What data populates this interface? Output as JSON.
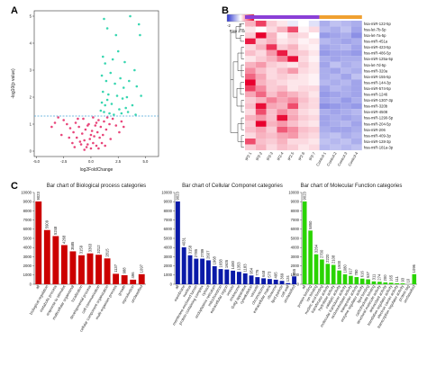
{
  "panels": {
    "a": "A",
    "b": "B",
    "c": "C"
  },
  "colors": {
    "volcano_significant": "#37d6b0",
    "volcano_nonsignificant": "#e8457a",
    "threshold_line": "#49a3d6",
    "heat_low": "#2d35d0",
    "heat_mid": "#ffffff",
    "heat_high": "#e8002e",
    "group_ip": "#8a3fd6",
    "group_control": "#f0a030",
    "bar_bio": "#cc0000",
    "bar_cell": "#0a1aa8",
    "bar_mol": "#2ad400"
  },
  "chart_data": [
    {
      "type": "scatter",
      "panel": "A",
      "xlabel": "log2FoldChange",
      "ylabel": "-log10(p value)",
      "xlim": [
        -5.2,
        6.2
      ],
      "ylim": [
        -0.2,
        5.2
      ],
      "xticks": [
        -5.0,
        -2.5,
        0.0,
        2.5,
        5.0
      ],
      "xtick_labels": [
        "-5.0",
        "-2.5",
        "0.0",
        "2.5",
        "5.0"
      ],
      "yticks": [
        0,
        1,
        2,
        3,
        4,
        5
      ],
      "threshold_y": 1.3,
      "significant_points": [
        [
          1.2,
          4.9
        ],
        [
          3.6,
          5.0
        ],
        [
          1.5,
          4.55
        ],
        [
          2.3,
          4.3
        ],
        [
          4.4,
          4.7
        ],
        [
          4.5,
          4.3
        ],
        [
          1.1,
          3.5
        ],
        [
          1.3,
          3.25
        ],
        [
          2.0,
          3.4
        ],
        [
          2.5,
          3.7
        ],
        [
          3.1,
          3.3
        ],
        [
          4.0,
          3.0
        ],
        [
          1.0,
          2.8
        ],
        [
          1.4,
          2.6
        ],
        [
          1.8,
          2.9
        ],
        [
          2.2,
          2.5
        ],
        [
          2.7,
          2.7
        ],
        [
          3.0,
          2.35
        ],
        [
          3.5,
          2.6
        ],
        [
          4.2,
          2.4
        ],
        [
          1.1,
          2.2
        ],
        [
          1.6,
          2.1
        ],
        [
          2.4,
          2.05
        ],
        [
          2.9,
          1.95
        ],
        [
          3.3,
          2.0
        ],
        [
          4.6,
          2.05
        ],
        [
          1.0,
          1.8
        ],
        [
          1.3,
          1.7
        ],
        [
          1.9,
          1.75
        ],
        [
          2.6,
          1.55
        ],
        [
          3.2,
          1.6
        ],
        [
          3.8,
          1.7
        ],
        [
          1.2,
          1.45
        ],
        [
          1.7,
          1.4
        ],
        [
          2.1,
          1.35
        ],
        [
          0.9,
          1.5
        ],
        [
          2.8,
          1.4
        ],
        [
          3.4,
          1.45
        ],
        [
          4.1,
          1.35
        ],
        [
          1.5,
          1.9
        ]
      ],
      "nonsignificant_points": [
        [
          -0.3,
          0.25
        ],
        [
          0.2,
          0.3
        ],
        [
          0.5,
          0.2
        ],
        [
          -0.6,
          0.4
        ],
        [
          0.8,
          0.5
        ],
        [
          -1.0,
          0.35
        ],
        [
          1.1,
          0.6
        ],
        [
          -1.3,
          0.5
        ],
        [
          0.0,
          0.1
        ],
        [
          -0.1,
          0.45
        ],
        [
          0.3,
          0.55
        ],
        [
          -0.4,
          0.15
        ],
        [
          0.6,
          0.7
        ],
        [
          -0.8,
          0.65
        ],
        [
          1.4,
          0.8
        ],
        [
          -1.6,
          0.7
        ],
        [
          0.9,
          0.9
        ],
        [
          -0.5,
          0.8
        ],
        [
          0.1,
          0.75
        ],
        [
          -1.1,
          0.9
        ],
        [
          1.7,
          1.0
        ],
        [
          -1.9,
          0.85
        ],
        [
          0.4,
          0.95
        ],
        [
          -0.2,
          1.0
        ],
        [
          1.2,
          1.1
        ],
        [
          -1.4,
          1.05
        ],
        [
          2.0,
          1.2
        ],
        [
          -2.2,
          1.0
        ],
        [
          0.7,
          1.15
        ],
        [
          -0.7,
          1.2
        ],
        [
          1.5,
          1.25
        ],
        [
          -2.5,
          1.15
        ],
        [
          2.3,
          0.95
        ],
        [
          -3.0,
          1.25
        ],
        [
          0.2,
          1.25
        ],
        [
          -0.9,
          0.25
        ],
        [
          1.0,
          0.3
        ],
        [
          -1.7,
          0.3
        ],
        [
          2.6,
          0.7
        ],
        [
          -2.7,
          0.6
        ],
        [
          0.0,
          0.6
        ],
        [
          -0.3,
          0.95
        ],
        [
          1.8,
          0.45
        ],
        [
          -2.0,
          0.5
        ],
        [
          0.5,
          1.05
        ],
        [
          -1.2,
          1.2
        ],
        [
          2.8,
          1.1
        ],
        [
          -3.3,
          1.05
        ],
        [
          -0.6,
          0.05
        ],
        [
          0.7,
          0.1
        ],
        [
          3.0,
          0.9
        ],
        [
          -3.6,
          0.9
        ],
        [
          1.3,
          0.2
        ],
        [
          -1.5,
          0.15
        ]
      ]
    },
    {
      "type": "heatmap",
      "panel": "B",
      "legend_title": "Row Z-Score",
      "legend_ticks": [
        "-2",
        "0",
        "2"
      ],
      "columns": [
        "IP2-1",
        "IP2-2",
        "IP2-3",
        "IP2-4",
        "IP2-5",
        "IP2-6",
        "IP2-7",
        "Control-1",
        "Control-2",
        "Control-3",
        "Control-4"
      ],
      "rows": [
        "hsa-miR-122-5p",
        "hsa-let-7b-5p",
        "hsa-let-7a-5p",
        "hsa-miR-451a",
        "hsa-miR-423-5p",
        "hsa-miR-486-5p",
        "hsa-miR-125a-5p",
        "hsa-let-7d-5p",
        "hsa-miR-320a",
        "hsa-miR-155-5p",
        "hsa-miR-144-3p",
        "hsa-miR-574-5p",
        "hsa-miR-1246",
        "hsa-miR-1307-3p",
        "hsa-miR-320b",
        "hsa-miR-4508",
        "hsa-miR-1290-5p",
        "hsa-miR-204-5p",
        "hsa-miR-206",
        "hsa-miR-409-3p",
        "hsa-miR-128-3p",
        "hsa-miR-181a-3p"
      ],
      "column_groups": [
        {
          "span": [
            0,
            6
          ],
          "color": "#8a3fd6"
        },
        {
          "span": [
            7,
            10
          ],
          "color": "#f0a030"
        }
      ],
      "values": [
        [
          0.6,
          1.5,
          0.4,
          0.2,
          -0.2,
          0.0,
          -0.3,
          -0.8,
          -0.6,
          -0.7,
          -0.8
        ],
        [
          0.2,
          0.0,
          0.3,
          0.6,
          1.4,
          0.1,
          0.3,
          -0.7,
          -0.8,
          -0.6,
          -0.9
        ],
        [
          0.4,
          2.0,
          0.6,
          0.1,
          0.4,
          0.3,
          0.0,
          -1.0,
          -0.9,
          -0.8,
          -1.1
        ],
        [
          1.8,
          0.4,
          0.6,
          0.2,
          0.3,
          0.1,
          0.2,
          -0.7,
          -0.8,
          -0.9,
          -0.8
        ],
        [
          0.3,
          0.6,
          1.6,
          0.4,
          0.6,
          0.2,
          0.1,
          -0.9,
          -0.8,
          -0.7,
          -0.9
        ],
        [
          0.5,
          0.3,
          0.8,
          1.8,
          0.5,
          0.4,
          0.2,
          -1.0,
          -0.9,
          -0.9,
          -1.0
        ],
        [
          0.2,
          0.4,
          0.6,
          1.0,
          1.9,
          0.3,
          0.1,
          -0.8,
          -0.9,
          -0.8,
          -0.8
        ],
        [
          0.6,
          0.8,
          0.4,
          0.3,
          0.2,
          0.4,
          0.2,
          -0.9,
          -0.6,
          -0.8,
          -0.7
        ],
        [
          0.9,
          0.5,
          0.3,
          0.5,
          0.8,
          0.3,
          0.2,
          -0.8,
          -0.9,
          -0.7,
          -0.8
        ],
        [
          1.2,
          0.7,
          0.3,
          0.4,
          0.3,
          0.2,
          0.1,
          -0.8,
          -0.7,
          -0.9,
          -0.6
        ],
        [
          2.1,
          0.6,
          0.4,
          0.3,
          0.2,
          0.2,
          0.1,
          -0.7,
          -0.8,
          -0.7,
          -0.9
        ],
        [
          1.5,
          0.9,
          0.4,
          0.5,
          0.2,
          0.3,
          0.3,
          -0.9,
          -0.7,
          -0.8,
          -0.9
        ],
        [
          0.7,
          1.2,
          0.5,
          0.8,
          0.6,
          0.4,
          0.2,
          -1.0,
          -0.9,
          -0.8,
          -0.9
        ],
        [
          0.4,
          0.6,
          1.0,
          0.7,
          0.9,
          0.5,
          0.3,
          -0.9,
          -0.8,
          -1.0,
          -0.8
        ],
        [
          0.5,
          1.9,
          0.7,
          0.6,
          1.4,
          0.4,
          0.3,
          -1.1,
          -1.0,
          -0.9,
          -1.0
        ],
        [
          0.3,
          1.4,
          0.5,
          0.9,
          0.6,
          0.3,
          0.2,
          -0.8,
          -0.9,
          -0.8,
          -0.7
        ],
        [
          0.6,
          0.8,
          0.5,
          1.9,
          0.7,
          0.4,
          0.3,
          -0.9,
          -0.8,
          -0.9,
          -0.8
        ],
        [
          0.4,
          2.0,
          0.6,
          0.8,
          0.5,
          0.3,
          0.2,
          -0.9,
          -0.8,
          -0.7,
          -0.9
        ],
        [
          0.5,
          0.7,
          0.4,
          1.3,
          0.9,
          0.5,
          0.4,
          -0.8,
          -0.9,
          -0.9,
          -0.8
        ],
        [
          0.3,
          0.6,
          0.5,
          0.7,
          0.8,
          0.4,
          0.3,
          -0.7,
          -0.6,
          -0.8,
          -0.7
        ],
        [
          1.4,
          0.5,
          0.4,
          0.6,
          0.3,
          0.3,
          0.2,
          -0.6,
          -0.7,
          -0.6,
          -0.8
        ],
        [
          0.4,
          0.6,
          0.3,
          0.5,
          0.4,
          0.2,
          0.3,
          -0.7,
          -0.6,
          -0.7,
          -0.6
        ]
      ]
    },
    {
      "type": "bar",
      "panel": "C",
      "title": "Bar chart of Biological process categories",
      "ylim": [
        0,
        10000
      ],
      "yticks": [
        0,
        1000,
        2000,
        3000,
        4000,
        5000,
        6000,
        7000,
        8000,
        9000,
        10000
      ],
      "categories": [
        "all",
        "biological regulation",
        "metabolic process",
        "response to stimulus",
        "multicellular organismal",
        "localization",
        "developmental process",
        "cell communication",
        "cellular component organization",
        "multi-organism process",
        "growth",
        "reproduction",
        "unclassified"
      ],
      "values": [
        9023,
        5909,
        5248,
        4268,
        3585,
        3159,
        3363,
        3212,
        2815,
        1137,
        988,
        496,
        1097
      ],
      "value_labels": [
        "9023",
        "5909",
        "5248",
        "4268",
        "3585",
        "3159",
        "3363",
        "3212",
        "2815",
        "1137",
        "988",
        "496",
        "1097"
      ]
    },
    {
      "type": "bar",
      "panel": "C",
      "title": "Bar chart of Cellular Componet categories",
      "ylim": [
        0,
        10000
      ],
      "yticks": [
        0,
        1000,
        2000,
        3000,
        4000,
        5000,
        6000,
        7000,
        8000,
        9000,
        10000
      ],
      "categories": [
        "all",
        "membrane",
        "nucleus",
        "membrane-enclosed lumen",
        "protein-containing complex",
        "cytosol",
        "endoplasmic reticulum",
        "mitochondrion",
        "extracellular region",
        "vesicle",
        "endosome",
        "Golgi apparatus",
        "cytoskeleton",
        "vacuole",
        "chromosome",
        "extracellular matrix",
        "ribosome",
        "lipid particle",
        "cell wall",
        "unclassified"
      ],
      "values": [
        9023,
        4031,
        3158,
        2785,
        2789,
        2607,
        1968,
        1658,
        1605,
        1480,
        1353,
        1183,
        954,
        775,
        648,
        573,
        495,
        369,
        124,
        855
      ],
      "value_labels": [
        "9023",
        "4031",
        "3158",
        "2785",
        "2789",
        "2607",
        "1968",
        "1658",
        "1605",
        "1480",
        "1353",
        "1183",
        "954",
        "775",
        "648",
        "573",
        "495",
        "369",
        "124",
        "855"
      ]
    },
    {
      "type": "bar",
      "panel": "C",
      "title": "Bar chart of Molecular Function categories",
      "ylim": [
        0,
        10000
      ],
      "yticks": [
        0,
        1000,
        2000,
        3000,
        4000,
        5000,
        6000,
        7000,
        8000,
        9000,
        10000
      ],
      "categories": [
        "all",
        "protein binding",
        "ion binding",
        "nucleic acid binding",
        "transferase activity",
        "hydrolase activity",
        "catalytic activity",
        "molecular transducer activity",
        "oxidoreductase activity",
        "transporter activity",
        "enzyme regulator activity",
        "lipid binding",
        "carbohydrate binding",
        "structural molecule activity",
        "antioxidant activity",
        "translation regulator activity",
        "electron carrier activity",
        "transcription regulator activity",
        "protein tag",
        "unclassified"
      ],
      "values": [
        9023,
        5850,
        3264,
        2700,
        2220,
        2108,
        1500,
        1080,
        917,
        780,
        616,
        537,
        311,
        274,
        200,
        165,
        111,
        93,
        10,
        1096
      ],
      "value_labels": [
        "9023",
        "5850",
        "3264",
        "2700",
        "2220",
        "2108",
        "1500",
        "1080",
        "917",
        "780",
        "616",
        "537",
        "311",
        "274",
        "200",
        "165",
        "111",
        "93",
        "10",
        "1096"
      ]
    }
  ]
}
